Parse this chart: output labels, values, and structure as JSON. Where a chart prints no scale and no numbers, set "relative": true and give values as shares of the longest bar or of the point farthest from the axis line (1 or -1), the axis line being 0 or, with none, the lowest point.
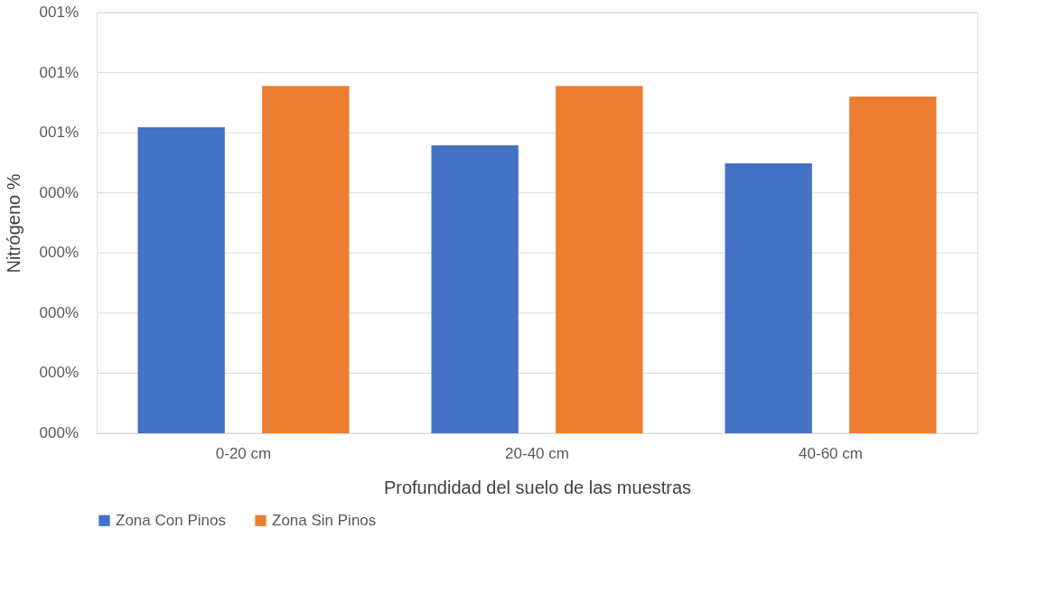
{
  "chart_data": {
    "type": "bar",
    "xlabel": "Profundidad del suelo de las muestras",
    "ylabel": "Nitrógeno %",
    "categories": [
      "0-20 cm",
      "20-40 cm",
      "40-60 cm"
    ],
    "series": [
      {
        "name": "Zona Con Pinos",
        "color": "#4472c4",
        "values": [
          0.881,
          0.829,
          0.777
        ]
      },
      {
        "name": "Zona Sin Pinos",
        "color": "#ed7d31",
        "values": [
          1,
          1,
          0.969
        ]
      }
    ],
    "relative": true,
    "annotations": [
      "000%",
      "000%",
      "000%",
      "000%",
      "000%",
      "001%",
      "001%",
      "001%"
    ],
    "grid": "y",
    "legend": "bottom"
  }
}
